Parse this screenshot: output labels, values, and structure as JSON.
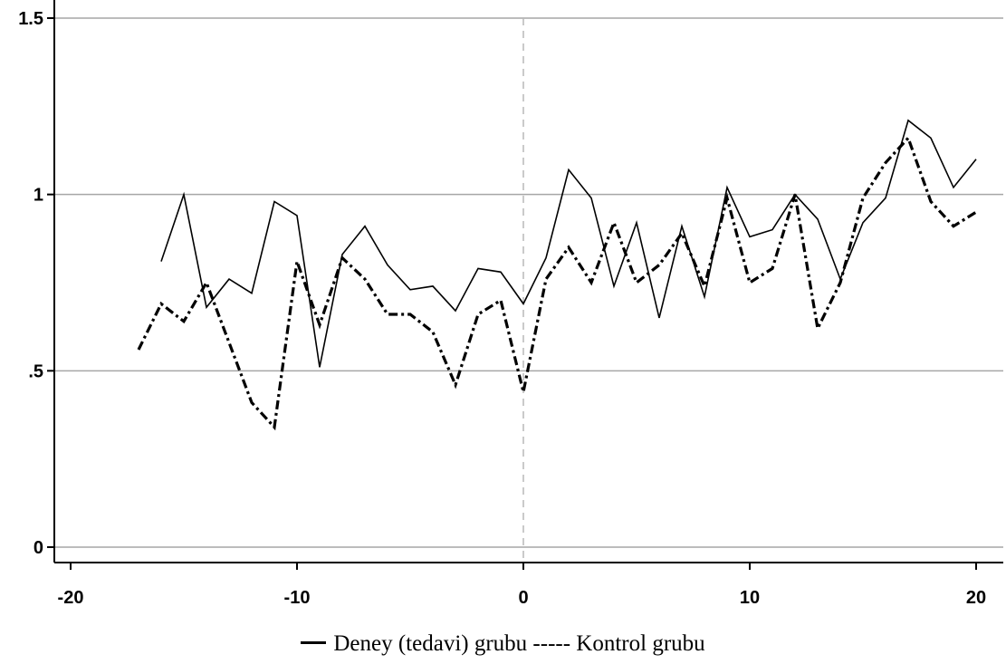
{
  "chart_data": {
    "type": "line",
    "xlim": [
      -20,
      20
    ],
    "ylim": [
      0,
      1.5
    ],
    "x_ticks": [
      "-20",
      "-10",
      "0",
      "10",
      "20"
    ],
    "y_ticks": [
      "0",
      ".5",
      "1",
      "1.5"
    ],
    "reference_line_x": 0,
    "grid": "horizontal",
    "legend_position": "bottom",
    "series": [
      {
        "name": "Deney (tedavi) grubu",
        "style": "solid",
        "color": "#000000",
        "x": [
          -16,
          -15,
          -14,
          -13,
          -12,
          -11,
          -10,
          -9,
          -8,
          -7,
          -6,
          -5,
          -4,
          -3,
          -2,
          -1,
          0,
          1,
          2,
          3,
          4,
          5,
          6,
          7,
          8,
          9,
          10,
          11,
          12,
          13,
          14,
          15,
          16,
          17,
          18,
          19,
          20
        ],
        "values": [
          0.81,
          1.0,
          0.68,
          0.76,
          0.72,
          0.98,
          0.94,
          0.51,
          0.83,
          0.91,
          0.8,
          0.73,
          0.74,
          0.67,
          0.79,
          0.78,
          0.69,
          0.82,
          1.07,
          0.99,
          0.74,
          0.92,
          0.65,
          0.91,
          0.71,
          1.02,
          0.88,
          0.9,
          1.0,
          0.93,
          0.76,
          0.92,
          0.99,
          1.21,
          1.16,
          1.02,
          1.1
        ]
      },
      {
        "name": "Kontrol grubu",
        "style": "dash-dot",
        "color": "#000000",
        "x": [
          -17,
          -16,
          -15,
          -14,
          -13,
          -12,
          -11,
          -10,
          -9,
          -8,
          -7,
          -6,
          -5,
          -4,
          -3,
          -2,
          -1,
          0,
          1,
          2,
          3,
          4,
          5,
          6,
          7,
          8,
          9,
          10,
          11,
          12,
          13,
          14,
          15,
          16,
          17,
          18,
          19,
          20
        ],
        "values": [
          0.56,
          0.69,
          0.64,
          0.75,
          0.58,
          0.41,
          0.34,
          0.81,
          0.63,
          0.82,
          0.76,
          0.66,
          0.66,
          0.61,
          0.46,
          0.66,
          0.7,
          0.44,
          0.76,
          0.85,
          0.75,
          0.92,
          0.75,
          0.8,
          0.89,
          0.74,
          0.99,
          0.75,
          0.79,
          1.0,
          0.62,
          0.75,
          0.99,
          1.09,
          1.16,
          0.98,
          0.91,
          0.95
        ]
      }
    ]
  },
  "legend": {
    "text": "Deney (tedavi) grubu ----- Kontrol grubu"
  }
}
